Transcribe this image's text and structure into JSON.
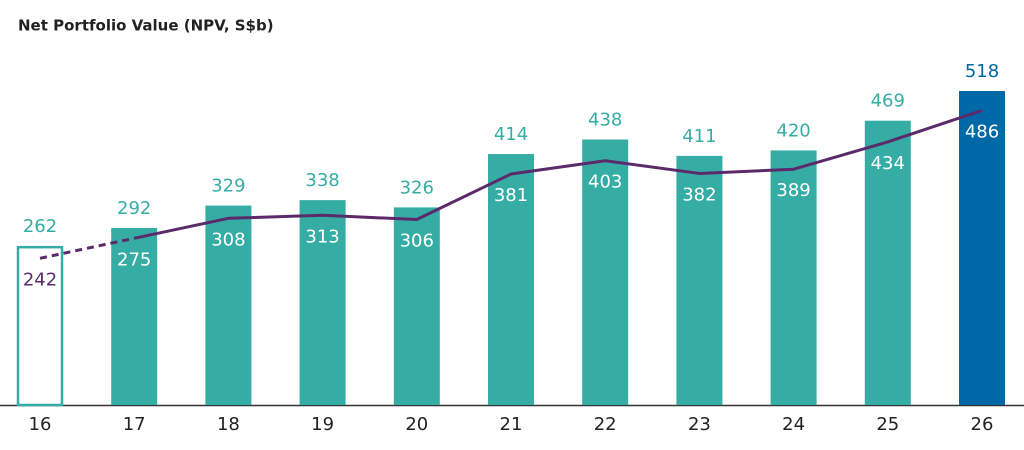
{
  "chart_data": {
    "type": "bar-line",
    "title": "Net Portfolio Value (NPV, S$b)",
    "categories": [
      "16",
      "17",
      "18",
      "19",
      "20",
      "21",
      "22",
      "23",
      "24",
      "25",
      "26"
    ],
    "series": [
      {
        "type": "bar",
        "values": [
          262,
          292,
          329,
          338,
          326,
          414,
          438,
          411,
          420,
          469,
          518
        ],
        "colors": [
          "#36ada4",
          "#36ada4",
          "#36ada4",
          "#36ada4",
          "#36ada4",
          "#36ada4",
          "#36ada4",
          "#36ada4",
          "#36ada4",
          "#36ada4",
          "#0068a6"
        ],
        "outlined": [
          0
        ]
      },
      {
        "type": "line",
        "color": "#5b2a6b",
        "values": [
          242,
          275,
          308,
          313,
          306,
          381,
          403,
          382,
          389,
          434,
          486
        ],
        "dashed_segments": [
          0
        ]
      }
    ]
  }
}
